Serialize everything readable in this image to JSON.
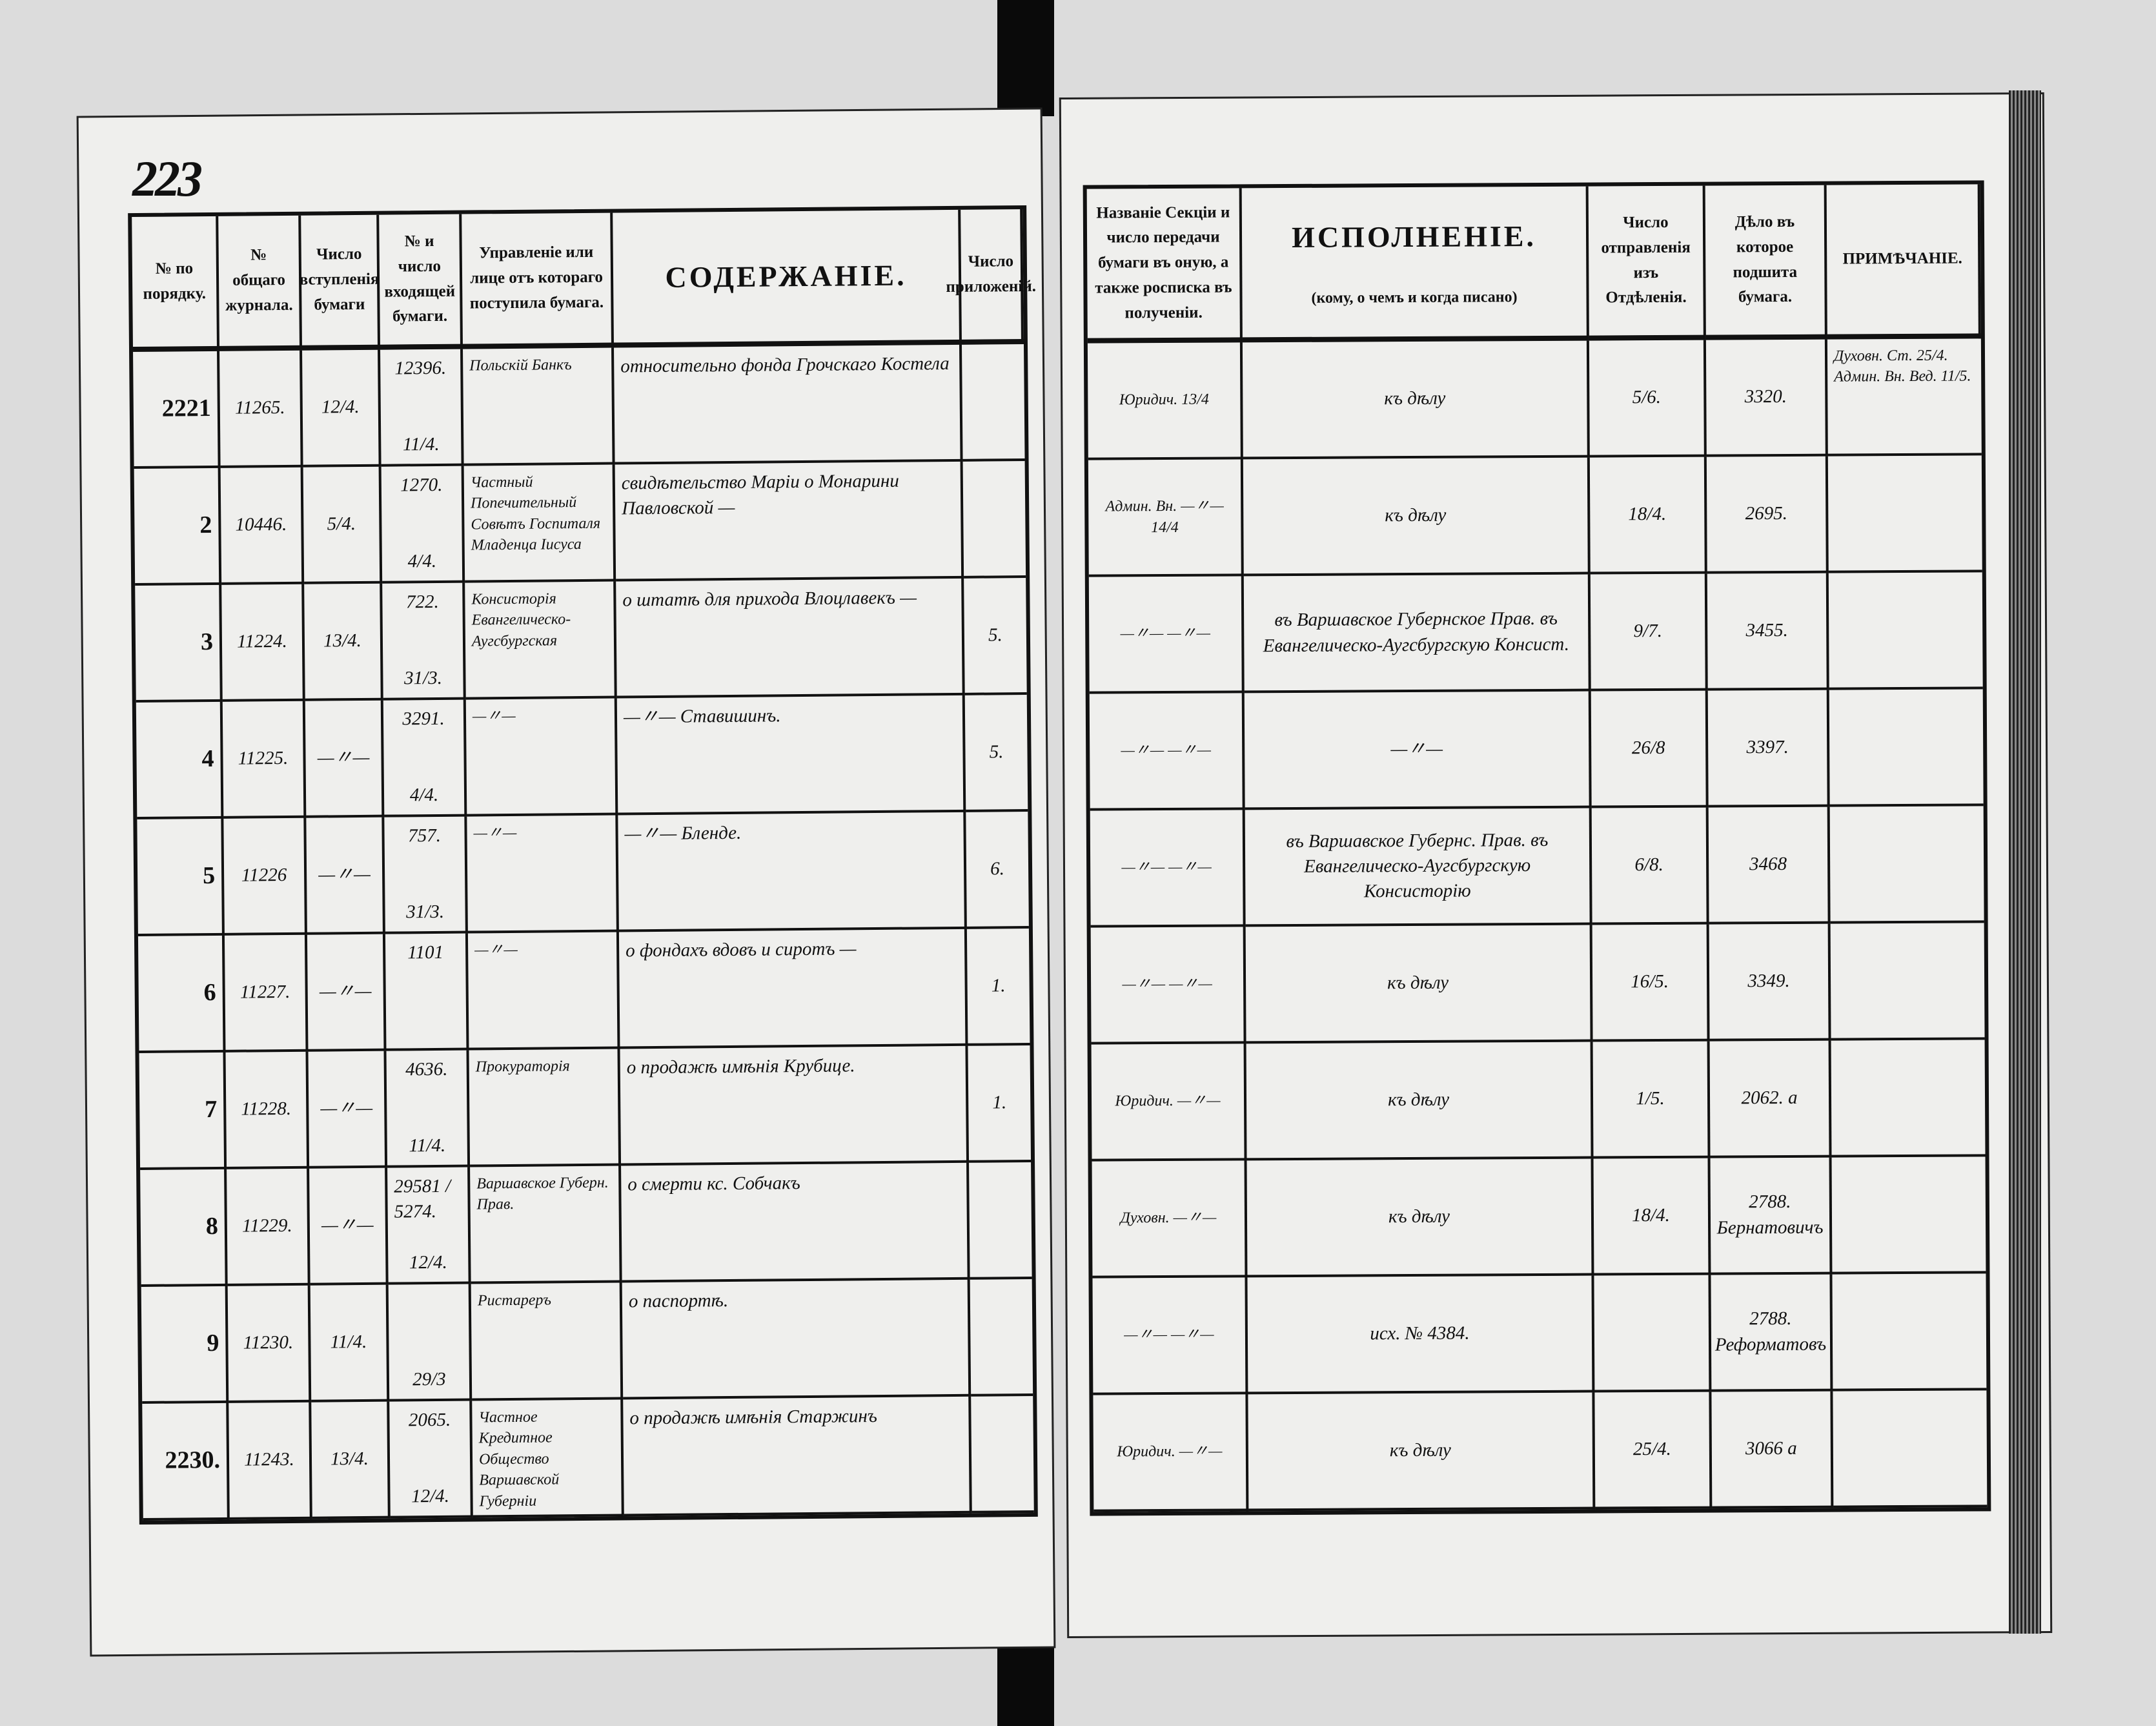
{
  "left_page": {
    "page_number": "223",
    "headers": [
      "№ по порядку.",
      "№ общаго журнала.",
      "Число вступленія бумаги",
      "№ и число входящей бумаги.",
      "Управленіе или лице отъ котораго поступила бумага.",
      "СОДЕРЖАНІЕ.",
      "Число приложеній."
    ],
    "rows": [
      {
        "no": "2221",
        "journal": "11265.",
        "date_in": "12/4.",
        "incoming_no": "12396.",
        "incoming_date": "11/4.",
        "sender": "Польскій Банкъ",
        "content": "относительно фонда Грочскаго Костела",
        "attachments": ""
      },
      {
        "no": "2",
        "journal": "10446.",
        "date_in": "5/4.",
        "incoming_no": "1270.",
        "incoming_date": "4/4.",
        "sender": "Частный Попечительный Совѣтъ Госпиталя Младенца Іисуса",
        "content": "свидѣтельство Марiи о Монарини Павловской —",
        "attachments": ""
      },
      {
        "no": "3",
        "journal": "11224.",
        "date_in": "13/4.",
        "incoming_no": "722.",
        "incoming_date": "31/3.",
        "sender": "Консисторія Евангелическо-Аугсбургская",
        "content": "о штатѣ для прихода Влоцлавекъ —",
        "attachments": "5."
      },
      {
        "no": "4",
        "journal": "11225.",
        "date_in": "—〃—",
        "incoming_no": "3291.",
        "incoming_date": "4/4.",
        "sender": "—〃—",
        "content": "—〃— Ставишинъ.",
        "attachments": "5."
      },
      {
        "no": "5",
        "journal": "11226",
        "date_in": "—〃—",
        "incoming_no": "757.",
        "incoming_date": "31/3.",
        "sender": "—〃—",
        "content": "—〃— Бленде.",
        "attachments": "6."
      },
      {
        "no": "6",
        "journal": "11227.",
        "date_in": "—〃—",
        "incoming_no": "1101",
        "incoming_date": "",
        "sender": "—〃—",
        "content": "о фондахъ вдовъ и сиротъ —",
        "attachments": "1."
      },
      {
        "no": "7",
        "journal": "11228.",
        "date_in": "—〃—",
        "incoming_no": "4636.",
        "incoming_date": "11/4.",
        "sender": "Прокураторія",
        "content": "о продажѣ имѣнія Крубице.",
        "attachments": "1."
      },
      {
        "no": "8",
        "journal": "11229.",
        "date_in": "—〃—",
        "incoming_no": "29581 / 5274.",
        "incoming_date": "12/4.",
        "sender": "Варшавское Губерн. Прав.",
        "content": "о смерти кс. Собчакъ",
        "attachments": ""
      },
      {
        "no": "9",
        "journal": "11230.",
        "date_in": "11/4.",
        "incoming_no": "",
        "incoming_date": "29/3",
        "sender": "Ристареръ",
        "content": "о паспортѣ.",
        "attachments": ""
      },
      {
        "no": "2230.",
        "journal": "11243.",
        "date_in": "13/4.",
        "incoming_no": "2065.",
        "incoming_date": "12/4.",
        "sender": "Частное Кредитное Общество Варшавской Губерніи",
        "content": "о продажѣ имѣнія Старжинъ",
        "attachments": ""
      }
    ]
  },
  "right_page": {
    "headers": {
      "section": "Названіе Секціи и число передачи бумаги въ оную, а также росписка въ полученіи.",
      "execution_title": "ИСПОЛНЕНІЕ.",
      "execution_sub": "(кому, о чемъ и когда писано)",
      "sent": "Число отправленія изъ Отдѣленія.",
      "case": "Дѣло въ которое подшита бумага.",
      "notes": "ПРИМѢЧАНІЕ."
    },
    "rows": [
      {
        "section": "Юридич. 13/4",
        "execution": "къ дѣлу",
        "sent": "5/6.",
        "case": "3320.",
        "notes": "Духовн. Ст. 25/4. Админ. Вн. Вед. 11/5."
      },
      {
        "section": "Админ. Вн. —〃— 14/4",
        "execution": "къ дѣлу",
        "sent": "18/4.",
        "case": "2695.",
        "notes": ""
      },
      {
        "section": "—〃— —〃—",
        "execution": "въ Варшавское Губернское Прав. въ Евангелическо-Аугсбургскую Консист.",
        "sent": "9/7.",
        "case": "3455.",
        "notes": ""
      },
      {
        "section": "—〃— —〃—",
        "execution": "—〃—",
        "sent": "26/8",
        "case": "3397.",
        "notes": ""
      },
      {
        "section": "—〃— —〃—",
        "execution": "въ Варшавское Губернс. Прав. въ Евангелическо-Аугсбургскую Консисторію",
        "sent": "6/8.",
        "case": "3468",
        "notes": ""
      },
      {
        "section": "—〃— —〃—",
        "execution": "къ дѣлу",
        "sent": "16/5.",
        "case": "3349.",
        "notes": ""
      },
      {
        "section": "Юридич. —〃—",
        "execution": "къ дѣлу",
        "sent": "1/5.",
        "case": "2062. а",
        "notes": ""
      },
      {
        "section": "Духовн. —〃—",
        "execution": "къ дѣлу",
        "sent": "18/4.",
        "case": "2788. Бернатовичъ",
        "notes": ""
      },
      {
        "section": "—〃— —〃—",
        "execution": "исх. № 4384.",
        "sent": "",
        "case": "2788. Реформатовъ",
        "notes": ""
      },
      {
        "section": "Юридич. —〃—",
        "execution": "къ дѣлу",
        "sent": "25/4.",
        "case": "3066 а",
        "notes": ""
      }
    ]
  }
}
